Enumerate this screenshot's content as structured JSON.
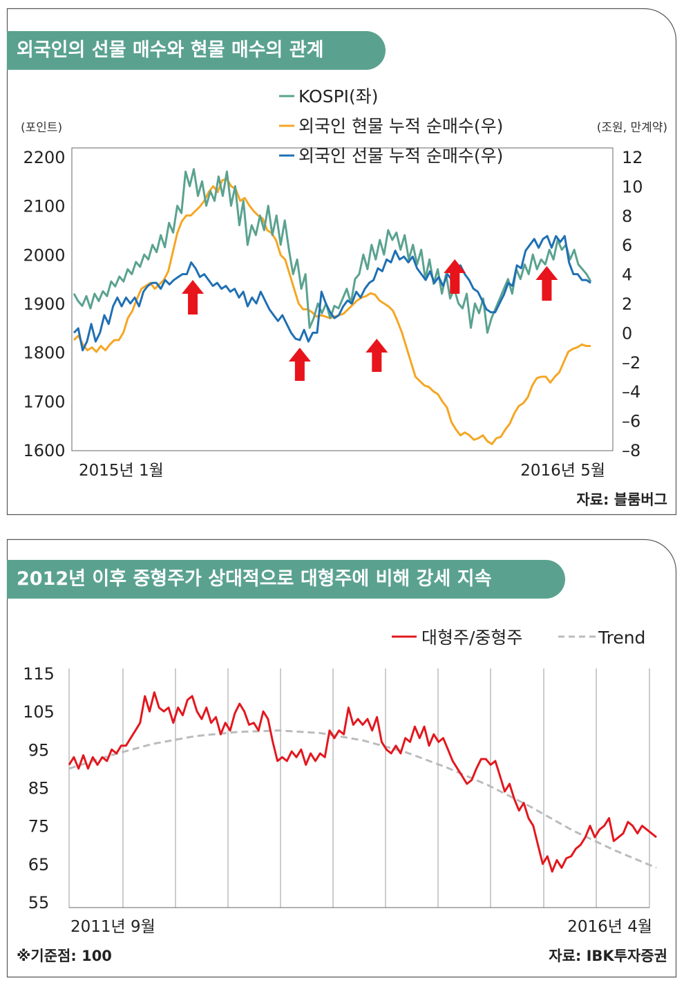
{
  "chart1": {
    "title": "외국인의 선물 매수와 현물 매수의 관계",
    "left_unit": "(포인트)",
    "right_unit": "(조원, 만계약)",
    "x_start_label": "2015년 1월",
    "x_end_label": "2016년 5월",
    "source": "자료: 블룸버그",
    "colors": {
      "kospi": "#5aa28f",
      "spot": "#f5a623",
      "futures": "#1f6fb3",
      "arrow": "#e8141c"
    }
  },
  "chart2": {
    "title": "2012년 이후 중형주가 상대적으로 대형주에 비해 강세 지속",
    "x_start_label": "2011년 9월",
    "x_end_label": "2016년 4월",
    "note": "※기준점: 100",
    "source": "자료: IBK투자증권",
    "colors": {
      "ratio": "#e3171e",
      "trend": "#bbbbbb"
    }
  },
  "chart_data": [
    {
      "type": "line",
      "title": "외국인의 선물 매수와 현물 매수의 관계",
      "x_range": [
        "2015-01",
        "2016-05"
      ],
      "y_left": {
        "unit": "(포인트)",
        "ylim": [
          1600,
          2200
        ],
        "ticks": [
          "2200",
          "2100",
          "2000",
          "1900",
          "1800",
          "1700",
          "1600"
        ]
      },
      "y_right": {
        "unit": "(조원, 만계약)",
        "ylim": [
          -8,
          12
        ],
        "ticks": [
          "12",
          "10",
          "8",
          "6",
          "4",
          "2",
          "0",
          "-2",
          "-4",
          "-6",
          "-8"
        ]
      },
      "legend_position": "top-center",
      "series": [
        {
          "name": "KOSPI(좌)",
          "axis": "left",
          "values": [
            1920,
            1905,
            1895,
            1915,
            1890,
            1920,
            1905,
            1925,
            1915,
            1945,
            1935,
            1955,
            1945,
            1970,
            1960,
            1985,
            1975,
            2000,
            1990,
            2020,
            2005,
            2040,
            2015,
            2065,
            2045,
            2100,
            2085,
            2170,
            2140,
            2175,
            2120,
            2150,
            2100,
            2130,
            2110,
            2160,
            2120,
            2170,
            2100,
            2140,
            2060,
            2110,
            2020,
            2060,
            2040,
            2080,
            2050,
            2100,
            2040,
            2080,
            2020,
            2070,
            2010,
            1960,
            1990,
            1930,
            1960,
            1850,
            1870,
            1900,
            1880,
            1900,
            1870,
            1895,
            1890,
            1910,
            1930,
            1900,
            1950,
            1960,
            2000,
            1970,
            2020,
            1990,
            2030,
            2000,
            2050,
            2030,
            2045,
            2010,
            2040,
            1990,
            2020,
            1980,
            2010,
            1950,
            1990,
            1940,
            1970,
            1920,
            1960,
            1910,
            1930,
            1900,
            1890,
            1920,
            1850,
            1900,
            1880,
            1910,
            1840,
            1870,
            1890,
            1910,
            1930,
            1950,
            1920,
            1970,
            1950,
            1980,
            1960,
            2000,
            1970,
            1990,
            1980,
            2010,
            1990,
            2030,
            2010,
            2020,
            1990,
            2010,
            1980,
            1970,
            1960,
            1945
          ]
        },
        {
          "name": "외국인 현물 누적 순매수(우)",
          "axis": "right",
          "values": [
            -0.5,
            -0.2,
            -0.8,
            -1.2,
            -1.0,
            -1.3,
            -0.9,
            -1.2,
            -0.8,
            -0.5,
            -0.5,
            0.0,
            1.0,
            1.5,
            2.3,
            3.0,
            3.2,
            3.4,
            3.0,
            3.3,
            3.6,
            4.2,
            5.5,
            6.8,
            7.6,
            8.0,
            8.0,
            8.3,
            8.6,
            9.0,
            9.6,
            10.0,
            9.6,
            10.4,
            10.5,
            10.0,
            9.8,
            9.0,
            9.2,
            8.7,
            8.3,
            8.0,
            7.8,
            7.0,
            6.8,
            6.3,
            5.3,
            5.0,
            4.0,
            3.0,
            2.0,
            1.6,
            1.6,
            1.4,
            1.1,
            1.2,
            1.1,
            1.0,
            1.1,
            1.2,
            1.3,
            1.6,
            1.9,
            2.2,
            2.4,
            2.5,
            2.7,
            2.6,
            2.2,
            2.0,
            1.8,
            1.5,
            0.8,
            0.0,
            -1.0,
            -2.0,
            -3.0,
            -3.3,
            -3.6,
            -3.7,
            -4.0,
            -4.2,
            -4.7,
            -5.1,
            -6.1,
            -6.6,
            -7.0,
            -6.8,
            -7.0,
            -7.3,
            -7.2,
            -7.0,
            -7.4,
            -7.6,
            -7.2,
            -7.1,
            -6.6,
            -6.2,
            -5.5,
            -5.0,
            -4.8,
            -4.4,
            -3.6,
            -3.1,
            -3.0,
            -3.0,
            -3.4,
            -3.0,
            -2.7,
            -2.0,
            -1.3,
            -1.1,
            -1.0,
            -0.8,
            -0.9,
            -0.9
          ]
        },
        {
          "name": "외국인 선물 누적 순매수(우)",
          "axis": "right",
          "values": [
            0.0,
            0.3,
            -1.2,
            -0.6,
            0.6,
            -0.6,
            0.0,
            1.2,
            0.6,
            1.8,
            2.4,
            1.8,
            2.4,
            2.0,
            2.4,
            1.8,
            2.8,
            3.2,
            3.4,
            3.4,
            3.0,
            3.6,
            3.3,
            3.6,
            3.8,
            4.0,
            4.0,
            4.8,
            4.4,
            3.8,
            4.0,
            3.6,
            3.2,
            3.4,
            3.0,
            3.2,
            2.8,
            3.0,
            2.4,
            2.8,
            1.8,
            2.4,
            2.0,
            2.8,
            2.2,
            1.6,
            1.2,
            0.8,
            1.2,
            0.6,
            0.0,
            -0.4,
            -0.5,
            0.2,
            -0.6,
            0.0,
            0.0,
            2.8,
            2.0,
            1.4,
            1.0,
            1.2,
            1.8,
            2.2,
            2.0,
            2.8,
            2.4,
            3.0,
            3.4,
            3.6,
            4.4,
            4.2,
            5.0,
            4.8,
            5.6,
            5.0,
            5.2,
            4.8,
            5.2,
            4.4,
            4.0,
            3.6,
            4.2,
            3.4,
            3.8,
            3.2,
            4.0,
            3.6,
            4.4,
            4.6,
            4.0,
            3.6,
            3.0,
            2.8,
            2.2,
            1.6,
            1.4,
            1.4,
            2.0,
            2.6,
            3.4,
            3.2,
            4.6,
            4.4,
            5.6,
            6.0,
            6.4,
            5.8,
            6.4,
            6.6,
            5.8,
            6.6,
            6.2,
            6.6,
            4.8,
            4.0,
            4.0,
            3.6,
            3.6,
            3.4
          ]
        }
      ],
      "annotations": [
        {
          "type": "up-arrow",
          "x_fraction": 0.23
        },
        {
          "type": "up-arrow",
          "x_fraction": 0.437
        },
        {
          "type": "up-arrow",
          "x_fraction": 0.586
        },
        {
          "type": "up-arrow",
          "x_fraction": 0.737
        },
        {
          "type": "up-arrow",
          "x_fraction": 0.915
        }
      ]
    },
    {
      "type": "line",
      "title": "2012년 이후 중형주가 상대적으로 대형주에 비해 강세 지속",
      "x_range": [
        "2011-09",
        "2016-04"
      ],
      "ylim": [
        55,
        115
      ],
      "y_ticks": [
        "115",
        "105",
        "95",
        "85",
        "75",
        "65",
        "55"
      ],
      "grid": "vertical",
      "legend_position": "top-right",
      "series": [
        {
          "name": "대형주/중형주",
          "values": [
            91.0,
            93.0,
            90.0,
            93.5,
            90.0,
            93.0,
            91.0,
            93.0,
            92.0,
            95.0,
            94.0,
            96.0,
            96.0,
            98.0,
            100.0,
            102.0,
            109.0,
            105.0,
            110.0,
            106.0,
            105.0,
            106.0,
            102.0,
            106.0,
            104.0,
            108.0,
            109.0,
            105.0,
            103.0,
            106.0,
            102.0,
            103.5,
            99.0,
            102.0,
            100.0,
            104.5,
            107.0,
            105.0,
            101.5,
            102.0,
            100.0,
            105.0,
            103.0,
            97.0,
            92.0,
            93.0,
            92.0,
            94.5,
            93.0,
            95.0,
            91.0,
            94.0,
            92.0,
            94.0,
            93.0,
            100.0,
            98.0,
            100.0,
            99.0,
            106.0,
            101.5,
            103.0,
            101.5,
            103.0,
            100.0,
            103.5,
            97.0,
            95.0,
            94.0,
            96.0,
            94.0,
            98.0,
            97.0,
            101.0,
            98.0,
            101.0,
            96.0,
            99.0,
            97.0,
            98.0,
            95.0,
            92.0,
            90.0,
            88.0,
            86.0,
            87.0,
            90.0,
            92.5,
            92.5,
            91.0,
            92.0,
            88.0,
            84.0,
            86.0,
            82.0,
            79.0,
            81.0,
            77.0,
            75.0,
            70.0,
            65.0,
            67.0,
            63.0,
            66.0,
            64.0,
            66.5,
            67.0,
            69.0,
            70.0,
            72.0,
            75.0,
            72.0,
            74.0,
            75.0,
            77.0,
            71.0,
            72.0,
            73.0,
            76.0,
            75.0,
            73.0,
            75.0,
            74.0,
            73.0,
            72.0
          ]
        },
        {
          "name": "Trend",
          "values": [
            90.0,
            93.5,
            96.5,
            98.5,
            99.6,
            100.0,
            99.3,
            97.4,
            94.4,
            90.3,
            85.6,
            80.0,
            73.8,
            68.6,
            64.0
          ]
        }
      ]
    }
  ]
}
